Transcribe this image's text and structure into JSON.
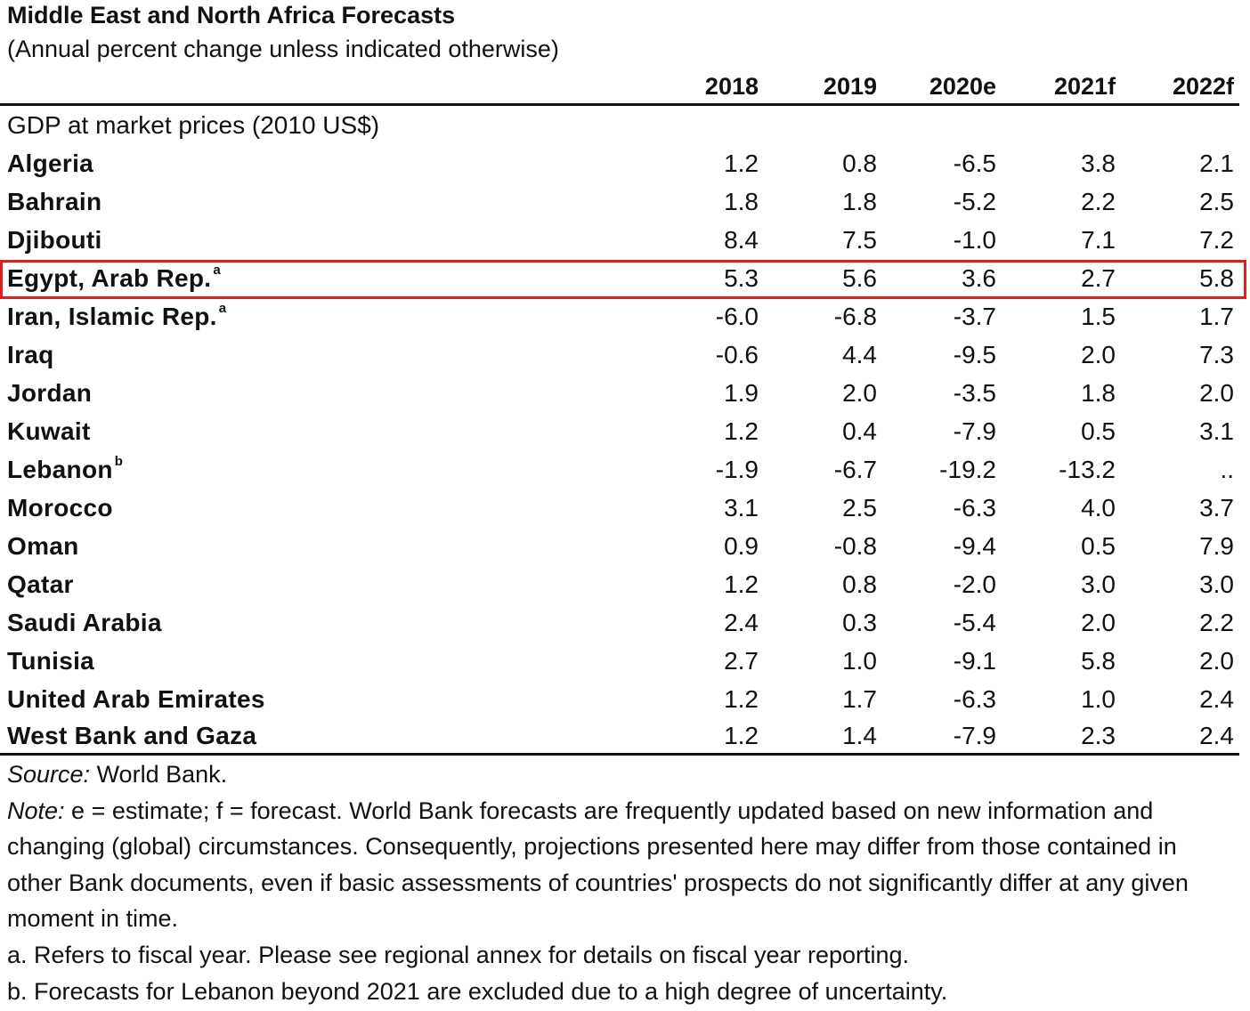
{
  "title": "Middle East and North Africa Forecasts",
  "subtitle": "(Annual percent change unless indicated otherwise)",
  "columns": [
    "2018",
    "2019",
    "2020e",
    "2021f",
    "2022f"
  ],
  "section_label": "GDP at market prices (2010 US$)",
  "rows": [
    {
      "label": "Algeria",
      "sup": "",
      "values": [
        "1.2",
        "0.8",
        "-6.5",
        "3.8",
        "2.1"
      ]
    },
    {
      "label": "Bahrain",
      "sup": "",
      "values": [
        "1.8",
        "1.8",
        "-5.2",
        "2.2",
        "2.5"
      ]
    },
    {
      "label": "Djibouti",
      "sup": "",
      "values": [
        "8.4",
        "7.5",
        "-1.0",
        "7.1",
        "7.2"
      ]
    },
    {
      "label": "Egypt, Arab Rep.",
      "sup": "a",
      "values": [
        "5.3",
        "5.6",
        "3.6",
        "2.7",
        "5.8"
      ]
    },
    {
      "label": "Iran, Islamic Rep.",
      "sup": "a",
      "values": [
        "-6.0",
        "-6.8",
        "-3.7",
        "1.5",
        "1.7"
      ]
    },
    {
      "label": "Iraq",
      "sup": "",
      "values": [
        "-0.6",
        "4.4",
        "-9.5",
        "2.0",
        "7.3"
      ]
    },
    {
      "label": "Jordan",
      "sup": "",
      "values": [
        "1.9",
        "2.0",
        "-3.5",
        "1.8",
        "2.0"
      ]
    },
    {
      "label": "Kuwait",
      "sup": "",
      "values": [
        "1.2",
        "0.4",
        "-7.9",
        "0.5",
        "3.1"
      ]
    },
    {
      "label": "Lebanon",
      "sup": "b",
      "values": [
        "-1.9",
        "-6.7",
        "-19.2",
        "-13.2",
        ".."
      ]
    },
    {
      "label": "Morocco",
      "sup": "",
      "values": [
        "3.1",
        "2.5",
        "-6.3",
        "4.0",
        "3.7"
      ]
    },
    {
      "label": "Oman",
      "sup": "",
      "values": [
        "0.9",
        "-0.8",
        "-9.4",
        "0.5",
        "7.9"
      ]
    },
    {
      "label": "Qatar",
      "sup": "",
      "values": [
        "1.2",
        "0.8",
        "-2.0",
        "3.0",
        "3.0"
      ]
    },
    {
      "label": "Saudi Arabia",
      "sup": "",
      "values": [
        "2.4",
        "0.3",
        "-5.4",
        "2.0",
        "2.2"
      ]
    },
    {
      "label": "Tunisia",
      "sup": "",
      "values": [
        "2.7",
        "1.0",
        "-9.1",
        "5.8",
        "2.0"
      ]
    },
    {
      "label": "United Arab Emirates",
      "sup": "",
      "values": [
        "1.2",
        "1.7",
        "-6.3",
        "1.0",
        "2.4"
      ]
    },
    {
      "label": "West Bank and Gaza",
      "sup": "",
      "values": [
        "1.2",
        "1.4",
        "-7.9",
        "2.3",
        "2.4"
      ]
    }
  ],
  "highlight_color": "#e0201c",
  "source": {
    "label": "Source:",
    "text": " World Bank."
  },
  "note": {
    "label": "Note:",
    "text": " e = estimate; f = forecast. World Bank forecasts are frequently updated based on new information and changing (global) circumstances. Consequently, projections presented here may differ from those contained in other Bank documents, even if basic assessments of countries' prospects do not significantly differ at any given moment in time."
  },
  "footnote_a": "a. Refers to fiscal year. Please see regional annex for details on fiscal year reporting.",
  "footnote_b": "b. Forecasts for Lebanon beyond 2021 are excluded due to a high degree of uncertainty."
}
